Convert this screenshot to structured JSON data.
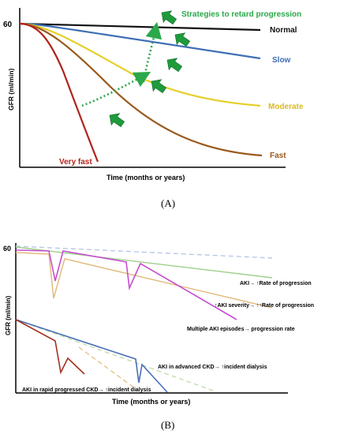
{
  "colors": {
    "normal": "#111111",
    "slow": "#3f6fb5",
    "moderate": "#e6cf2a",
    "fast": "#9a5a1c",
    "very_fast": "#b0241b",
    "strategy": "#2aa84a",
    "strategy_arrow": "#1f9a3c",
    "b_dashed_blue": "#b9c7e6",
    "b_green": "#9fd08a",
    "b_tan": "#e2b87a",
    "b_magenta": "#c54ecf",
    "b_red": "#a33120",
    "b_blue": "#4a6fb8",
    "b_dashed_green": "#bcd9a6"
  },
  "panel_a": {
    "label": "(A)",
    "y_tick": "60",
    "y_axis_label": "GFR (ml/min)",
    "x_axis_label": "Time (months or years)",
    "curves": {
      "normal": "Normal",
      "slow": "Slow",
      "moderate": "Moderate",
      "fast": "Fast",
      "very_fast": "Very fast"
    },
    "strategies_label": "Strategies to retard progression"
  },
  "panel_b": {
    "label": "(B)",
    "y_tick": "60",
    "y_axis_label": "GFR (ml/min)",
    "x_axis_label": "Time (months or years)",
    "annotations": {
      "aki_rate": "AKI→ ↑Rate of progression",
      "severity": "↑AKI severity→ ↑↑Rate of progression",
      "multiple": "Multiple AKI episodes→ progression rate",
      "advanced": "AKI in advanced CKD→ ↑incident dialysis",
      "rapid": "AKI in rapid progressed CKD→ ↑incident dialysis"
    }
  }
}
